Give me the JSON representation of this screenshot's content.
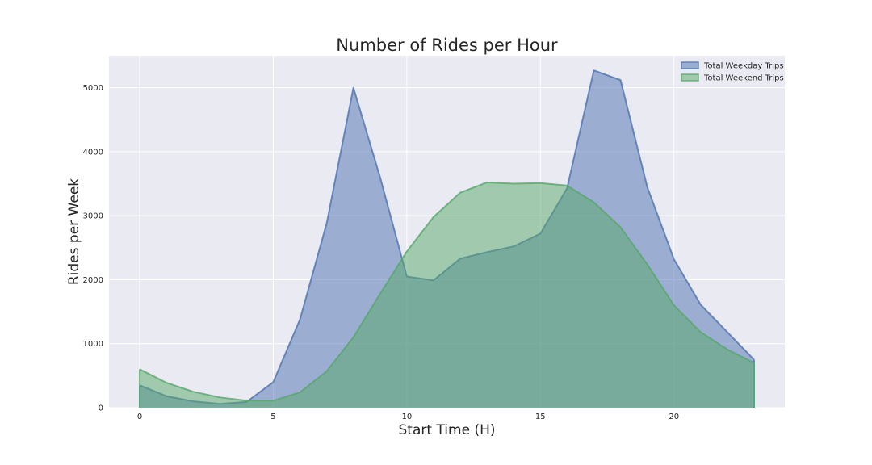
{
  "chart_data": {
    "type": "area",
    "title": "Number of Rides per Hour",
    "xlabel": "Start Time (H)",
    "ylabel": "Rides per Week",
    "xlim": [
      -1.15,
      24.15
    ],
    "ylim": [
      0,
      5500
    ],
    "xticks": [
      "0",
      "5",
      "10",
      "15",
      "20"
    ],
    "yticks": [
      "0",
      "1000",
      "2000",
      "3000",
      "4000",
      "5000"
    ],
    "grid": true,
    "legend_position": "top-right",
    "x": [
      0,
      1,
      2,
      3,
      4,
      5,
      6,
      7,
      8,
      9,
      10,
      11,
      12,
      13,
      14,
      15,
      16,
      17,
      18,
      19,
      20,
      21,
      22,
      23
    ],
    "series": [
      {
        "name": "Total Weekday Trips",
        "color": "#4C72B0",
        "values": [
          350,
          180,
          100,
          60,
          90,
          400,
          1380,
          2880,
          5000,
          3600,
          2050,
          1990,
          2330,
          2430,
          2520,
          2720,
          3430,
          5270,
          5120,
          3450,
          2320,
          1610,
          1180,
          750
        ]
      },
      {
        "name": "Total Weekend Trips",
        "color": "#55A868",
        "values": [
          600,
          390,
          250,
          160,
          110,
          110,
          240,
          570,
          1100,
          1780,
          2440,
          2980,
          3360,
          3520,
          3500,
          3510,
          3470,
          3210,
          2820,
          2240,
          1600,
          1180,
          910,
          700
        ]
      }
    ]
  }
}
